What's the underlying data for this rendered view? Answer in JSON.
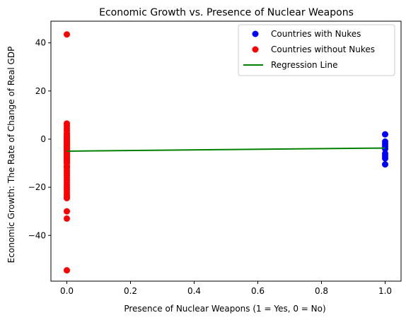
{
  "chart_data": {
    "type": "scatter",
    "title": "Economic Growth vs. Presence of Nuclear Weapons",
    "xlabel": "Presence of Nuclear Weapons (1 = Yes, 0 = No)",
    "ylabel": "Economic Growth: The Rate of Change of Real GDP",
    "xlim": [
      -0.05,
      1.05
    ],
    "ylim": [
      -59,
      49
    ],
    "x_ticks": [
      0.0,
      0.2,
      0.4,
      0.6,
      0.8,
      1.0
    ],
    "x_tick_labels": [
      "0.0",
      "0.2",
      "0.4",
      "0.6",
      "0.8",
      "1.0"
    ],
    "y_ticks": [
      -40,
      -20,
      0,
      20,
      40
    ],
    "y_tick_labels": [
      "−40",
      "−20",
      "0",
      "20",
      "40"
    ],
    "grid": false,
    "legend_position": "top-right",
    "series": [
      {
        "name": "Countries with Nukes",
        "color": "#0000ff",
        "marker": "circle",
        "x": [
          1,
          1,
          1,
          1,
          1,
          1,
          1,
          1,
          1
        ],
        "y": [
          2,
          -1,
          -2,
          -3,
          -4,
          -6,
          -7,
          -8,
          -10.5
        ]
      },
      {
        "name": "Countries without Nukes",
        "color": "#ff0000",
        "marker": "circle",
        "x": [
          0,
          0,
          0,
          0,
          0,
          0,
          0,
          0,
          0,
          0,
          0,
          0,
          0,
          0,
          0,
          0,
          0,
          0,
          0,
          0,
          0,
          0,
          0,
          0,
          0,
          0,
          0,
          0,
          0,
          0,
          0,
          0,
          0,
          0,
          0,
          0,
          0,
          0,
          0,
          0,
          0,
          0,
          0,
          0,
          0,
          0,
          0,
          0,
          0,
          0,
          0,
          0
        ],
        "y": [
          43.5,
          6.5,
          5.5,
          4.5,
          3.5,
          2.5,
          1.5,
          1,
          0.5,
          0,
          -0.5,
          -1,
          -1.5,
          -2,
          -2.5,
          -3,
          -3.5,
          -4,
          -4.5,
          -5,
          -5.5,
          -6,
          -6.5,
          -7,
          -7.5,
          -8,
          -8.5,
          -9,
          -9.5,
          -10,
          -11,
          -11.5,
          -12,
          -13,
          -14,
          -15,
          -16,
          -17,
          -18,
          -19,
          -20,
          -21,
          -22,
          -23,
          -24,
          -24.5,
          -30,
          -33,
          -54.5,
          -6,
          -3,
          2
        ]
      }
    ],
    "regression_line": {
      "name": "Regression Line",
      "color": "#008000",
      "x": [
        0,
        1
      ],
      "y": [
        -5,
        -3.7
      ]
    }
  }
}
